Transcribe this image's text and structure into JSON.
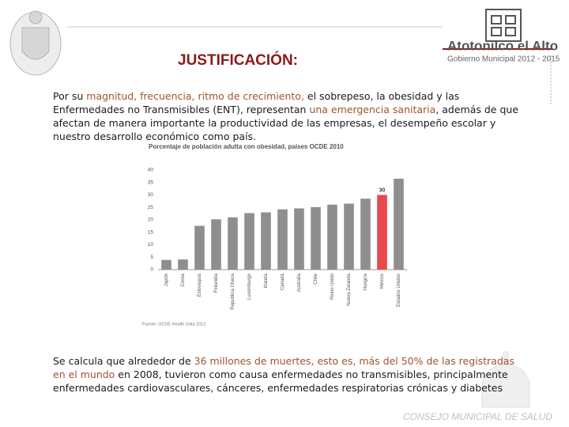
{
  "header": {
    "title": "JUSTIFICACIÓN:",
    "logo_name": "Atotonilco el Alto",
    "logo_subtitle": "Gobierno Municipal 2012 - 2015"
  },
  "paragraphs": [
    [
      {
        "text": "Por su ",
        "highlight": false
      },
      {
        "text": "magnitud, frecuencia, ritmo de crecimiento,",
        "highlight": true
      },
      {
        "text": " el sobrepeso, la obesidad y las Enfermedades no Transmisibles (ENT), representan ",
        "highlight": false
      },
      {
        "text": "una emergencia sanitaria",
        "highlight": true
      },
      {
        "text": ", además de que afectan de manera importante la productividad de las empresas, el desempeño escolar y nuestro desarrollo económico como país.",
        "highlight": false
      }
    ],
    [
      {
        "text": "Se calcula que alrededor de ",
        "highlight": false
      },
      {
        "text": "36 millones de muertes, esto es, más del 50% de las registradas en el mundo",
        "highlight": true
      },
      {
        "text": " en 2008, tuvieron como causa enfermedades no transmisibles, principalmente enfermedades cardiovasculares, cánceres, enfermedades respiratorias crónicas y diabetes",
        "highlight": false
      }
    ]
  ],
  "chart_data": {
    "type": "bar",
    "title": "Porcentaje de población adulta con obesidad, países OCDE 2010",
    "categories": [
      "Japón",
      "Corea",
      "Eslovaquia",
      "Finlandia",
      "República Checa",
      "Luxemburgo",
      "Irlanda",
      "Canadá",
      "Australia",
      "Chile",
      "Reino Unido",
      "Nueva Zelanda",
      "Hungría",
      "México",
      "Estados Unidos"
    ],
    "values": [
      3.9,
      4.1,
      17.6,
      20.2,
      21.0,
      22.7,
      23.0,
      24.2,
      24.6,
      25.1,
      26.1,
      26.5,
      28.5,
      30,
      36.5
    ],
    "value_labels": [
      null,
      null,
      null,
      null,
      null,
      null,
      null,
      null,
      null,
      null,
      null,
      null,
      null,
      "30",
      null
    ],
    "colors": [
      "#8e8e8e",
      "#8e8e8e",
      "#8e8e8e",
      "#8e8e8e",
      "#8e8e8e",
      "#8e8e8e",
      "#8e8e8e",
      "#8e8e8e",
      "#8e8e8e",
      "#8e8e8e",
      "#8e8e8e",
      "#8e8e8e",
      "#8e8e8e",
      "#e8474b",
      "#8e8e8e"
    ],
    "ylim": [
      0,
      40
    ],
    "yticks": [
      0,
      5,
      10,
      15,
      20,
      25,
      30,
      35,
      40
    ],
    "grid": false,
    "source": "Fuente: OCDE Health Data 2012"
  },
  "footer": "CONSEJO MUNICIPAL DE SALUD"
}
